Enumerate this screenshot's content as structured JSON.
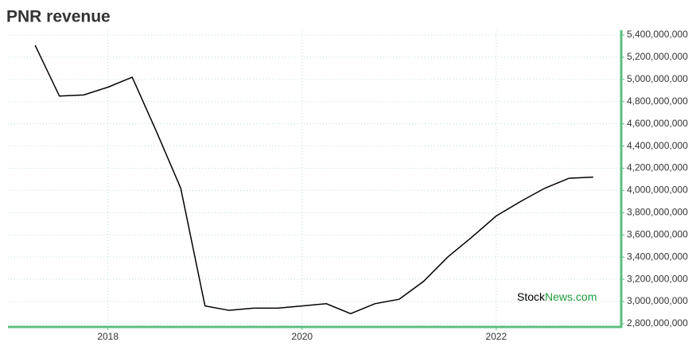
{
  "chart_data": {
    "type": "line",
    "title": "PNR revenue",
    "x": [
      2017.25,
      2017.5,
      2017.75,
      2018.0,
      2018.25,
      2018.5,
      2018.75,
      2019.0,
      2019.25,
      2019.5,
      2019.75,
      2020.0,
      2020.25,
      2020.5,
      2020.75,
      2021.0,
      2021.25,
      2021.5,
      2021.75,
      2022.0,
      2022.25,
      2022.5,
      2022.75,
      2023.0
    ],
    "series": [
      {
        "name": "PNR revenue",
        "color": "#000000",
        "values": [
          5307000000,
          4850000000,
          4860000000,
          4930000000,
          5020000000,
          4530000000,
          4020000000,
          2960000000,
          2920000000,
          2940000000,
          2940000000,
          2960000000,
          2980000000,
          2890000000,
          2980000000,
          3020000000,
          3180000000,
          3400000000,
          3580000000,
          3770000000,
          3900000000,
          4020000000,
          4110000000,
          4120000000
        ]
      }
    ],
    "xlim": [
      2016.97,
      2023.28
    ],
    "xticks": [
      2018,
      2020,
      2022
    ],
    "ylim": [
      2778000000,
      5443000000
    ],
    "yticks": [
      {
        "value": 2800000000,
        "label": "2,800,000,000"
      },
      {
        "value": 3000000000,
        "label": "3,000,000,000"
      },
      {
        "value": 3200000000,
        "label": "3,200,000,000"
      },
      {
        "value": 3400000000,
        "label": "3,400,000,000"
      },
      {
        "value": 3600000000,
        "label": "3,600,000,000"
      },
      {
        "value": 3800000000,
        "label": "3,800,000,000"
      },
      {
        "value": 4000000000,
        "label": "4,000,000,000"
      },
      {
        "value": 4200000000,
        "label": "4,200,000,000"
      },
      {
        "value": 4400000000,
        "label": "4,400,000,000"
      },
      {
        "value": 4600000000,
        "label": "4,600,000,000"
      },
      {
        "value": 4800000000,
        "label": "4,800,000,000"
      },
      {
        "value": 5000000000,
        "label": "5,000,000,000"
      },
      {
        "value": 5200000000,
        "label": "5,200,000,000"
      },
      {
        "value": 5400000000,
        "label": "5,400,000,000"
      }
    ],
    "grid": true,
    "axis_color": "#5cbf82",
    "watermark": [
      "Stock",
      "News.com"
    ]
  }
}
